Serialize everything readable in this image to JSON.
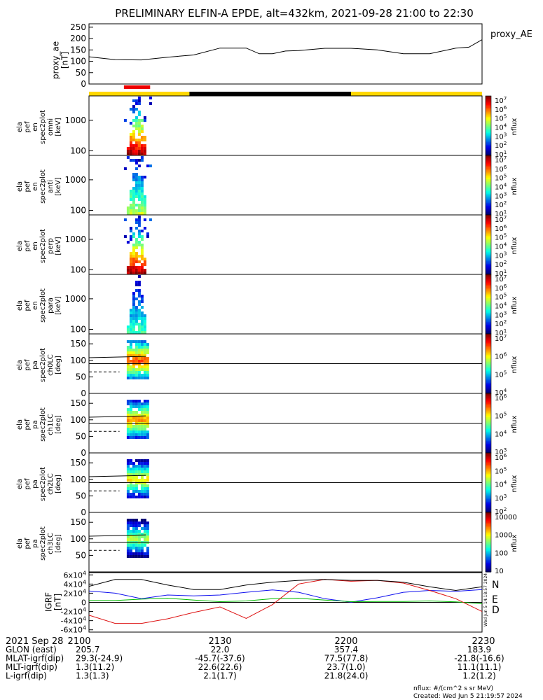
{
  "title": "PRELIMINARY ELFIN-A EPDE, alt=432km, 2021-09-28 21:00 to 22:30",
  "time_axis": {
    "start_label": "2021 Sep 28",
    "ticks": [
      "2100",
      "2130",
      "2200",
      "2230"
    ]
  },
  "ephemeris": {
    "rows": [
      {
        "label": "GLON (east)",
        "values": [
          "205.7",
          "22.0",
          "357.4",
          "183.9"
        ]
      },
      {
        "label": "MLAT-igrf(dip)",
        "values": [
          "29.3(-24.9)",
          "-45.7(-37.6)",
          "77.5(77.8)",
          "-21.8(-16.6)"
        ]
      },
      {
        "label": "MLT-igrf(dip)",
        "values": [
          "1.3(11.2)",
          "22.6(22.6)",
          "23.7(1.0)",
          "11.1(11.1)"
        ]
      },
      {
        "label": "L-igrf(dip)",
        "values": [
          "1.3(1.3)",
          "2.1(1.7)",
          "21.8(24.0)",
          "1.2(1.2)"
        ]
      }
    ]
  },
  "footer": {
    "units": "nflux: #/(cm^2 s sr MeV)",
    "created": "Created: Wed Jun  5 21:19:57 2024"
  },
  "side_stamp": "Wed Jun  5 14:18:57 2024",
  "colors": {
    "bar_yellow": "#ffd700",
    "bar_black": "#000000",
    "red_marker": "#ee0000",
    "bx": "#1010ee",
    "by": "#00bb00",
    "bz": "#dd1010",
    "btot": "#000000"
  },
  "chart_data": [
    {
      "type": "line",
      "panel": "proxy_ae",
      "ylabel_lines": [
        "proxy_ae",
        "[nT]"
      ],
      "legend": "proxy_AE",
      "yticks": [
        "250",
        "200",
        "150",
        "100",
        "50",
        "0"
      ],
      "ylim": [
        0,
        265
      ],
      "x_minutes": [
        0,
        6,
        12,
        18,
        24,
        30,
        36,
        39,
        42,
        45,
        48,
        54,
        60,
        66,
        72,
        78,
        84,
        87,
        90
      ],
      "values": [
        120,
        107,
        106,
        118,
        128,
        158,
        158,
        133,
        133,
        145,
        147,
        157,
        157,
        150,
        133,
        133,
        158,
        162,
        195
      ]
    },
    {
      "type": "heatmap",
      "panel": "spectrograms",
      "status_bar": [
        {
          "from_min": 0,
          "to_min": 23,
          "color": "yellow"
        },
        {
          "from_min": 23,
          "to_min": 60,
          "color": "black"
        },
        {
          "from_min": 60,
          "to_min": 90,
          "color": "yellow"
        }
      ],
      "red_marker_min": [
        8,
        14
      ],
      "active_interval_min": [
        8,
        14
      ],
      "colorbar_units": "nflux",
      "energy_panels": [
        {
          "ylabel_lines": [
            "ela",
            "pef",
            "en",
            "spec2plot",
            "omni",
            "[keV]"
          ],
          "yticks": [
            "1000",
            "100"
          ],
          "cbar_ticks": [
            "10^7",
            "10^6",
            "10^5",
            "10^4",
            "10^3",
            "10^2",
            "10^1"
          ],
          "intensity": 1.0
        },
        {
          "ylabel_lines": [
            "ela",
            "pef",
            "en",
            "spec2plot",
            "anti",
            "[keV]"
          ],
          "yticks": [
            "1000",
            "100"
          ],
          "cbar_ticks": [
            "10^7",
            "10^6",
            "10^5",
            "10^4",
            "10^3",
            "10^2",
            "10^1"
          ],
          "intensity": 0.55
        },
        {
          "ylabel_lines": [
            "ela",
            "pef",
            "en",
            "spec2plot",
            "perp",
            "[keV]"
          ],
          "yticks": [
            "1000",
            "100"
          ],
          "cbar_ticks": [
            "10^7",
            "10^6",
            "10^5",
            "10^4",
            "10^3",
            "10^2",
            "10^1"
          ],
          "intensity": 1.0
        },
        {
          "ylabel_lines": [
            "ela",
            "pef",
            "en",
            "spec2plot",
            "para",
            "[keV]"
          ],
          "yticks": [
            "1000",
            "100"
          ],
          "cbar_ticks": [
            "10^7",
            "10^6",
            "10^5",
            "10^4",
            "10^3",
            "10^2",
            "10^1"
          ],
          "intensity": 0.4
        }
      ],
      "pitch_panels": [
        {
          "ylabel_lines": [
            "ela",
            "pef",
            "pa",
            "spec2plot",
            "ch0LC",
            "[deg]"
          ],
          "yticks": [
            "150",
            "100",
            "50",
            "0"
          ],
          "cbar_ticks": [
            "10^7",
            "10^6",
            "10^5",
            "10^4"
          ]
        },
        {
          "ylabel_lines": [
            "ela",
            "pef",
            "pa",
            "spec2plot",
            "ch1LC",
            "[deg]"
          ],
          "yticks": [
            "150",
            "100",
            "50",
            "0"
          ],
          "cbar_ticks": [
            "10^6",
            "10^5",
            "10^4",
            "10^3"
          ]
        },
        {
          "ylabel_lines": [
            "ela",
            "pef",
            "pa",
            "spec2plot",
            "ch2LC",
            "[deg]"
          ],
          "yticks": [
            "150",
            "100",
            "50",
            "0"
          ],
          "cbar_ticks": [
            "10^6",
            "10^5",
            "10^4",
            "10^3",
            "10^2"
          ]
        },
        {
          "ylabel_lines": [
            "ela",
            "pef",
            "pa",
            "spec2plot",
            "ch3LC",
            "[deg]"
          ],
          "yticks": [
            "150",
            "100",
            "50"
          ],
          "cbar_ticks": [
            "10000",
            "1000",
            "100",
            "10"
          ]
        }
      ]
    },
    {
      "type": "line",
      "panel": "igrf",
      "ylabel_lines": [
        "IGRF",
        "[nT]"
      ],
      "yticks": [
        "6x10^4",
        "4x10^4",
        "2x10^4",
        "0",
        "-2x10^4",
        "-4x10^4",
        "-6x10^4"
      ],
      "ylim": [
        -65000,
        65000
      ],
      "legend": [
        "N",
        "E",
        "D"
      ],
      "x_minutes": [
        0,
        6,
        12,
        18,
        24,
        30,
        36,
        42,
        48,
        54,
        60,
        66,
        72,
        78,
        84,
        90
      ],
      "series": [
        {
          "name": "N",
          "values": [
            25000,
            20000,
            8000,
            16000,
            14000,
            16000,
            22000,
            27000,
            22000,
            8000,
            500,
            10000,
            22000,
            26000,
            24000,
            28000
          ]
        },
        {
          "name": "E",
          "values": [
            4000,
            4000,
            7000,
            9000,
            5000,
            1500,
            3000,
            8000,
            9000,
            5000,
            1500,
            2000,
            2000,
            3000,
            1000,
            -3000
          ]
        },
        {
          "name": "D",
          "values": [
            -28000,
            -46000,
            -46000,
            -36000,
            -22000,
            -10000,
            -35000,
            -5000,
            40000,
            50000,
            46000,
            48000,
            42000,
            26000,
            8000,
            -20000
          ]
        },
        {
          "name": "total",
          "values": [
            35000,
            50000,
            50000,
            38000,
            28000,
            28000,
            38000,
            44000,
            48000,
            50000,
            48000,
            48000,
            44000,
            34000,
            26000,
            34000
          ]
        }
      ]
    }
  ]
}
